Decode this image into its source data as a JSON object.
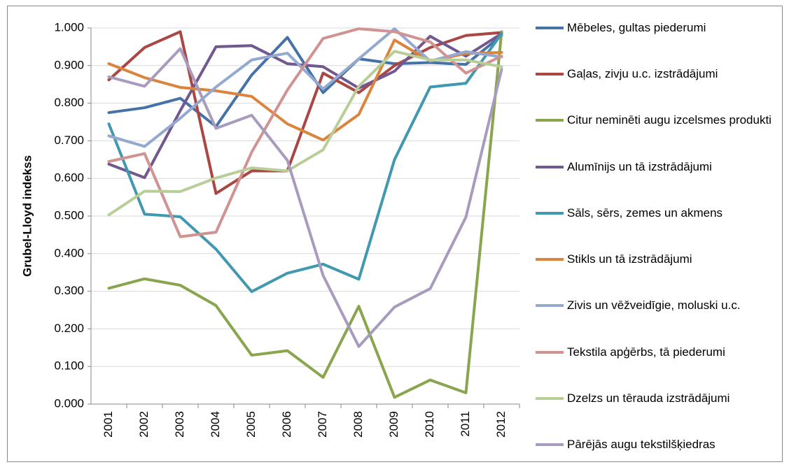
{
  "chart_data": {
    "type": "line",
    "y_label": "Grubel-Lloyd indekss",
    "categories": [
      "2001",
      "2002",
      "2003",
      "2004",
      "2005",
      "2006",
      "2007",
      "2008",
      "2009",
      "2010",
      "2011",
      "2012"
    ],
    "ylim": [
      0,
      1
    ],
    "yticks": [
      {
        "value": 0,
        "label": "0.000"
      },
      {
        "value": 0.1,
        "label": "0.100"
      },
      {
        "value": 0.2,
        "label": "0.200"
      },
      {
        "value": 0.3,
        "label": "0.300"
      },
      {
        "value": 0.4,
        "label": "0.400"
      },
      {
        "value": 0.5,
        "label": "0.500"
      },
      {
        "value": 0.6,
        "label": "0.600"
      },
      {
        "value": 0.7,
        "label": "0.700"
      },
      {
        "value": 0.8,
        "label": "0.800"
      },
      {
        "value": 0.9,
        "label": "0.900"
      },
      {
        "value": 1,
        "label": "1.000"
      }
    ],
    "grid": true,
    "legend": "right",
    "series": [
      {
        "name": "Mēbeles, gultas piederumi",
        "color": "#4572a7",
        "values": [
          0.775,
          0.788,
          0.813,
          0.738,
          0.875,
          0.975,
          0.828,
          0.918,
          0.905,
          0.908,
          0.903,
          0.98
        ]
      },
      {
        "name": "Gaļas, zivju u.c. izstrādājumi",
        "color": "#aa4643",
        "values": [
          0.862,
          0.948,
          0.99,
          0.56,
          0.62,
          0.62,
          0.88,
          0.828,
          0.9,
          0.948,
          0.98,
          0.988
        ]
      },
      {
        "name": "Citur neminēti augu izcelsmes produkti",
        "color": "#89a54e",
        "values": [
          0.308,
          0.333,
          0.316,
          0.262,
          0.13,
          0.142,
          0.071,
          0.26,
          0.018,
          0.064,
          0.03,
          0.99
        ]
      },
      {
        "name": "Alumīnijs un tā izstrādājumi",
        "color": "#71588f",
        "values": [
          0.638,
          0.602,
          0.78,
          0.95,
          0.953,
          0.905,
          0.897,
          0.84,
          0.885,
          0.978,
          0.925,
          0.985
        ]
      },
      {
        "name": "Sāls, sērs, zemes un akmens",
        "color": "#4198af",
        "values": [
          0.745,
          0.505,
          0.498,
          0.412,
          0.299,
          0.348,
          0.372,
          0.332,
          0.65,
          0.843,
          0.853,
          0.985
        ]
      },
      {
        "name": "Stikls un tā izstrādājumi",
        "color": "#db843d",
        "values": [
          0.905,
          0.868,
          0.842,
          0.833,
          0.818,
          0.745,
          0.702,
          0.77,
          0.968,
          0.912,
          0.932,
          0.935
        ]
      },
      {
        "name": "Zivis un vēžveidīgie, moluski u.c.",
        "color": "#93a9cf",
        "values": [
          0.713,
          0.685,
          0.76,
          0.843,
          0.915,
          0.933,
          0.838,
          0.918,
          0.998,
          0.912,
          0.937,
          0.923
        ]
      },
      {
        "name": "Tekstila apģērbs, tā piederumi",
        "color": "#d19392",
        "values": [
          0.645,
          0.666,
          0.445,
          0.457,
          0.67,
          0.835,
          0.972,
          0.998,
          0.99,
          0.963,
          0.88,
          0.925
        ]
      },
      {
        "name": "Dzelzs un tērauda izstrādājumi",
        "color": "#b9cd96",
        "values": [
          0.503,
          0.566,
          0.565,
          0.601,
          0.628,
          0.62,
          0.676,
          0.845,
          0.938,
          0.915,
          0.915,
          0.897
        ]
      },
      {
        "name": "Pārējās augu tekstilšķiedras",
        "color": "#a99bbd",
        "values": [
          0.87,
          0.845,
          0.945,
          0.733,
          0.768,
          0.648,
          0.342,
          0.153,
          0.258,
          0.307,
          0.497,
          0.89
        ]
      }
    ]
  }
}
